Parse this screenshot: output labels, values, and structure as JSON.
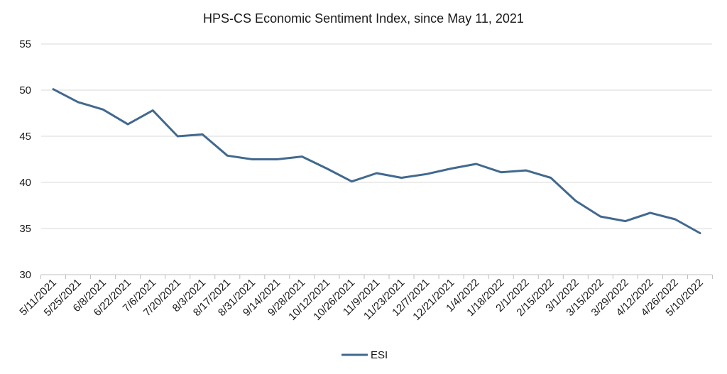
{
  "chart_data": {
    "type": "line",
    "title": "HPS-CS Economic Sentiment Index, since May 11, 2021",
    "xlabel": "",
    "ylabel": "",
    "ylim": [
      30,
      55
    ],
    "yticks": [
      30,
      35,
      40,
      45,
      50,
      55
    ],
    "grid": true,
    "legend_position": "bottom",
    "colors": {
      "series": "#41698f",
      "grid": "#d9d9d9",
      "axis": "#bfbfbf"
    },
    "categories": [
      "5/11/2021",
      "5/25/2021",
      "6/8/2021",
      "6/22/2021",
      "7/6/2021",
      "7/20/2021",
      "8/3/2021",
      "8/17/2021",
      "8/31/2021",
      "9/14/2021",
      "9/28/2021",
      "10/12/2021",
      "10/26/2021",
      "11/9/2021",
      "11/23/2021",
      "12/7/2021",
      "12/21/2021",
      "1/4/2022",
      "1/18/2022",
      "2/1/2022",
      "2/15/2022",
      "3/1/2022",
      "3/15/2022",
      "3/29/2022",
      "4/12/2022",
      "4/26/2022",
      "5/10/2022"
    ],
    "series": [
      {
        "name": "ESI",
        "values": [
          50.1,
          48.7,
          47.9,
          46.3,
          47.8,
          45.0,
          45.2,
          42.9,
          42.5,
          42.5,
          42.8,
          41.5,
          40.1,
          41.0,
          40.5,
          40.9,
          41.5,
          42.0,
          41.1,
          41.3,
          40.5,
          38.0,
          36.3,
          35.8,
          36.7,
          36.0,
          34.5
        ]
      }
    ]
  }
}
